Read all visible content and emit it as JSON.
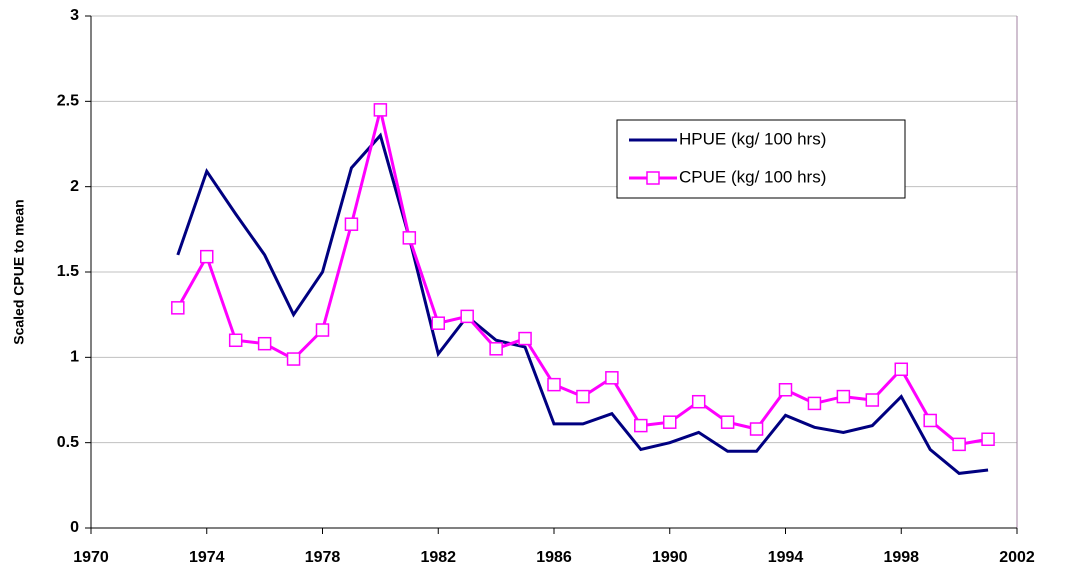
{
  "chart_data": {
    "type": "line",
    "ylabel": "Scaled CPUE to mean",
    "x": [
      1973,
      1974,
      1975,
      1976,
      1977,
      1978,
      1979,
      1980,
      1981,
      1982,
      1983,
      1984,
      1985,
      1986,
      1987,
      1988,
      1989,
      1990,
      1991,
      1992,
      1993,
      1994,
      1995,
      1996,
      1997,
      1998,
      1999,
      2000,
      2001
    ],
    "series": [
      {
        "name": "HPUE (kg/ 100 hrs)",
        "color": "#000080",
        "marker": "none",
        "values": [
          1.6,
          2.09,
          1.84,
          1.6,
          1.25,
          1.5,
          2.11,
          2.3,
          1.7,
          1.02,
          1.24,
          1.1,
          1.06,
          0.61,
          0.61,
          0.67,
          0.46,
          0.5,
          0.56,
          0.45,
          0.45,
          0.66,
          0.59,
          0.56,
          0.6,
          0.77,
          0.46,
          0.32,
          0.34
        ]
      },
      {
        "name": "CPUE (kg/ 100 hrs)",
        "color": "#ff00ff",
        "marker": "square",
        "values": [
          1.29,
          1.59,
          1.1,
          1.08,
          0.99,
          1.16,
          1.78,
          2.45,
          1.7,
          1.2,
          1.24,
          1.05,
          1.11,
          0.84,
          0.77,
          0.88,
          0.6,
          0.62,
          0.74,
          0.62,
          0.58,
          0.81,
          0.73,
          0.77,
          0.75,
          0.93,
          0.63,
          0.49,
          0.52
        ]
      }
    ],
    "xlim": [
      1970,
      2002
    ],
    "xticks": [
      1970,
      1974,
      1978,
      1982,
      1986,
      1990,
      1994,
      1998,
      2002
    ],
    "ylim": [
      0,
      3
    ],
    "yticks": [
      0,
      0.5,
      1,
      1.5,
      2,
      2.5,
      3
    ],
    "grid": true
  }
}
